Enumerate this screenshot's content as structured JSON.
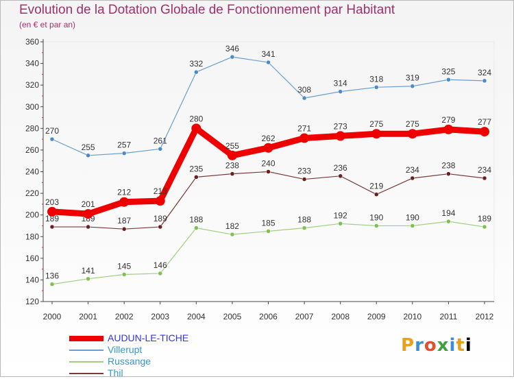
{
  "chart_data": {
    "type": "line",
    "title": "Evolution de la Dotation Globale de Fonctionnement par Habitant",
    "subtitle": "(en € et par an)",
    "xlabel": "",
    "ylabel": "",
    "ylim": [
      120,
      360
    ],
    "yticks": [
      120,
      140,
      160,
      180,
      200,
      220,
      240,
      260,
      280,
      300,
      320,
      340,
      360
    ],
    "categories": [
      "2000",
      "2001",
      "2002",
      "2003",
      "2004",
      "2005",
      "2006",
      "2007",
      "2008",
      "2009",
      "2010",
      "2011",
      "2012"
    ],
    "grid": false,
    "legend_position": "bottom-left",
    "series": [
      {
        "name": "Villerupt",
        "color": "#6a9ed0",
        "dot": "#4a8ac8",
        "emphasis": false,
        "values": [
          270,
          255,
          257,
          261,
          332,
          346,
          341,
          308,
          314,
          318,
          319,
          325,
          324
        ]
      },
      {
        "name": "Russange",
        "color": "#a0d080",
        "dot": "#80c050",
        "emphasis": false,
        "values": [
          136,
          141,
          145,
          146,
          188,
          182,
          185,
          188,
          192,
          190,
          190,
          194,
          189
        ]
      },
      {
        "name": "Thil",
        "color": "#7a3a3a",
        "dot": "#6a2020",
        "emphasis": false,
        "values": [
          189,
          189,
          187,
          189,
          235,
          238,
          240,
          233,
          236,
          219,
          234,
          238,
          234
        ]
      },
      {
        "name": "AUDUN-LE-TICHE",
        "color": "#ee0000",
        "dot": "#ee0000",
        "emphasis": true,
        "values": [
          203,
          201,
          212,
          213,
          280,
          255,
          262,
          271,
          273,
          275,
          275,
          279,
          277
        ]
      }
    ]
  },
  "legend": [
    {
      "label": "AUDUN-LE-TICHE",
      "color": "#ee0000",
      "text_color": "#3333ee",
      "thick": true
    },
    {
      "label": "Villerupt",
      "color": "#6a9ed0",
      "text_color": "#3399cc",
      "thick": false
    },
    {
      "label": "Russange",
      "color": "#a0d080",
      "text_color": "#3399cc",
      "thick": false
    },
    {
      "label": "Thil",
      "color": "#7a3a3a",
      "text_color": "#3399cc",
      "thick": false
    }
  ],
  "brand": [
    "P",
    "r",
    "o",
    "x",
    "i",
    "t",
    "i"
  ]
}
